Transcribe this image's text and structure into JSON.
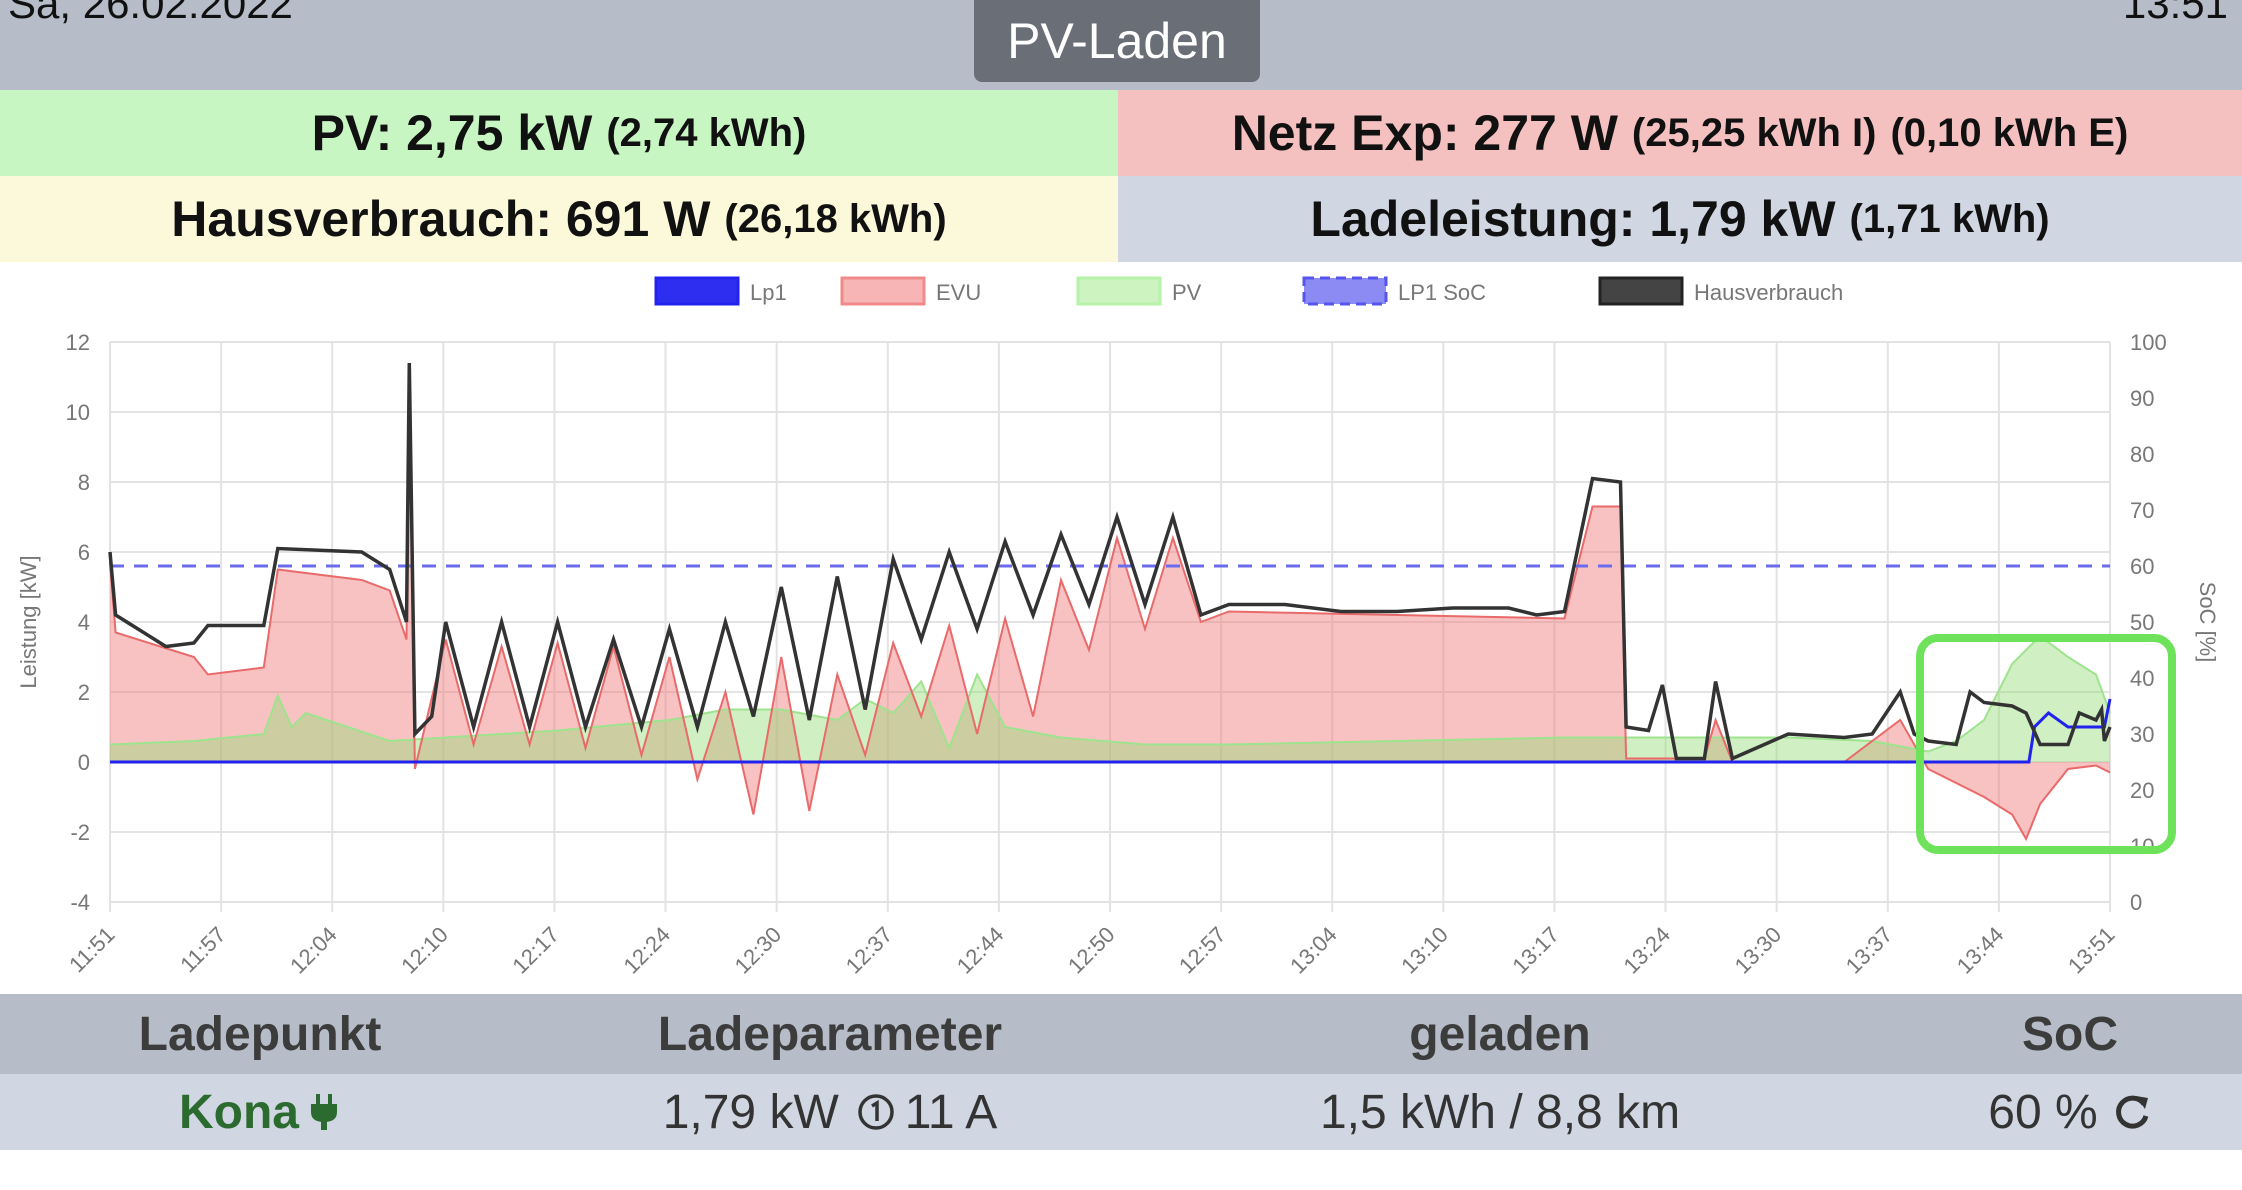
{
  "header": {
    "date": "Sa, 26.02.2022",
    "time": "13:51",
    "mode_button": "PV-Laden"
  },
  "stats": {
    "pv_label": "PV: 2,75 kW",
    "pv_energy": "(2,74 kWh)",
    "netz_label": "Netz Exp: 277 W",
    "netz_import": "(25,25 kWh I)",
    "netz_export": "(0,10 kWh E)",
    "haus_label": "Hausverbrauch: 691 W",
    "haus_energy": "(26,18 kWh)",
    "lade_label": "Ladeleistung: 1,79 kW",
    "lade_energy": "(1,71 kWh)"
  },
  "chart_data": {
    "type": "area",
    "legend": [
      {
        "name": "Lp1",
        "color": "#2222ee",
        "style": "solid"
      },
      {
        "name": "EVU",
        "color": "#f08a8a",
        "style": "solid"
      },
      {
        "name": "PV",
        "color": "#b6f2a8",
        "style": "solid"
      },
      {
        "name": "LP1 SoC",
        "color": "#5555ee",
        "style": "dashed"
      },
      {
        "name": "Hausverbrauch",
        "color": "#333333",
        "style": "solid"
      }
    ],
    "legend_position": "top-center",
    "ylabel_left": "Leistung [kW]",
    "ylabel_right": "SoC [%]",
    "ylim_left": [
      -4,
      12
    ],
    "ylim_right": [
      0,
      100
    ],
    "yticks_left": [
      "12",
      "10",
      "8",
      "6",
      "4",
      "2",
      "0",
      "-2",
      "-4"
    ],
    "yticks_right": [
      "100",
      "90",
      "80",
      "70",
      "60",
      "50",
      "40",
      "30",
      "20",
      "10",
      "0"
    ],
    "xticks": [
      "11:51",
      "11:57",
      "12:04",
      "12:10",
      "12:17",
      "12:24",
      "12:30",
      "12:37",
      "12:44",
      "12:50",
      "12:57",
      "13:04",
      "13:10",
      "13:17",
      "13:24",
      "13:30",
      "13:37",
      "13:44",
      "13:51"
    ],
    "grid": true,
    "lp1_soc_percent": 60,
    "series": [
      {
        "name": "Hausverbrauch",
        "points": [
          [
            0,
            6
          ],
          [
            0.2,
            4.2
          ],
          [
            1,
            3.8
          ],
          [
            2,
            3.3
          ],
          [
            3,
            3.4
          ],
          [
            3.5,
            3.9
          ],
          [
            5.5,
            3.9
          ],
          [
            6,
            6.1
          ],
          [
            9,
            6
          ],
          [
            10,
            5.5
          ],
          [
            10.6,
            4
          ],
          [
            10.7,
            11.4
          ],
          [
            10.9,
            0.8
          ],
          [
            11.5,
            1.3
          ],
          [
            12,
            4
          ],
          [
            13,
            1
          ],
          [
            14,
            4
          ],
          [
            15,
            1
          ],
          [
            16,
            4
          ],
          [
            17,
            1
          ],
          [
            18,
            3.5
          ],
          [
            19,
            1
          ],
          [
            20,
            3.8
          ],
          [
            21,
            1
          ],
          [
            22,
            4
          ],
          [
            23,
            1.3
          ],
          [
            24,
            5
          ],
          [
            25,
            1.2
          ],
          [
            26,
            5.3
          ],
          [
            27,
            1.5
          ],
          [
            28,
            5.8
          ],
          [
            29,
            3.5
          ],
          [
            30,
            6
          ],
          [
            31,
            3.8
          ],
          [
            32,
            6.3
          ],
          [
            33,
            4.2
          ],
          [
            34,
            6.5
          ],
          [
            35,
            4.5
          ],
          [
            36,
            7
          ],
          [
            37,
            4.5
          ],
          [
            38,
            7
          ],
          [
            39,
            4.2
          ],
          [
            40,
            4.5
          ],
          [
            42,
            4.5
          ],
          [
            44,
            4.3
          ],
          [
            46,
            4.3
          ],
          [
            48,
            4.4
          ],
          [
            50,
            4.4
          ],
          [
            51,
            4.2
          ],
          [
            52,
            4.3
          ],
          [
            53,
            8.1
          ],
          [
            54,
            8
          ],
          [
            54.2,
            1
          ],
          [
            55,
            0.9
          ],
          [
            55.5,
            2.2
          ],
          [
            56,
            0.1
          ],
          [
            57,
            0.1
          ],
          [
            57.4,
            2.3
          ],
          [
            58,
            0.1
          ],
          [
            60,
            0.8
          ],
          [
            62,
            0.7
          ],
          [
            63,
            0.8
          ],
          [
            64,
            2
          ],
          [
            64.5,
            0.8
          ],
          [
            65,
            0.6
          ],
          [
            66,
            0.5
          ],
          [
            66.5,
            2
          ],
          [
            67,
            1.7
          ],
          [
            68,
            1.6
          ],
          [
            68.5,
            1.4
          ],
          [
            69,
            0.5
          ],
          [
            70,
            0.5
          ],
          [
            70.4,
            1.4
          ],
          [
            71,
            1.2
          ],
          [
            71.2,
            1.5
          ],
          [
            71.3,
            0.6
          ],
          [
            71.5,
            1
          ]
        ]
      },
      {
        "name": "EVU",
        "points": [
          [
            0,
            5.7
          ],
          [
            0.2,
            3.7
          ],
          [
            3,
            3
          ],
          [
            3.5,
            2.5
          ],
          [
            5.5,
            2.7
          ],
          [
            6,
            5.5
          ],
          [
            9,
            5.2
          ],
          [
            10,
            4.9
          ],
          [
            10.6,
            3.5
          ],
          [
            10.7,
            10.6
          ],
          [
            10.9,
            -0.2
          ],
          [
            12,
            3.5
          ],
          [
            13,
            0.5
          ],
          [
            14,
            3.3
          ],
          [
            15,
            0.5
          ],
          [
            16,
            3.4
          ],
          [
            17,
            0.4
          ],
          [
            18,
            3.3
          ],
          [
            19,
            0.2
          ],
          [
            20,
            3
          ],
          [
            21,
            -0.5
          ],
          [
            22,
            2
          ],
          [
            23,
            -1.5
          ],
          [
            24,
            3
          ],
          [
            25,
            -1.4
          ],
          [
            26,
            2.5
          ],
          [
            27,
            0.2
          ],
          [
            28,
            3.4
          ],
          [
            29,
            1.3
          ],
          [
            30,
            3.9
          ],
          [
            31,
            0.8
          ],
          [
            32,
            4.1
          ],
          [
            33,
            1.3
          ],
          [
            34,
            5.2
          ],
          [
            35,
            3.2
          ],
          [
            36,
            6.4
          ],
          [
            37,
            3.8
          ],
          [
            38,
            6.4
          ],
          [
            39,
            4
          ],
          [
            40,
            4.3
          ],
          [
            46,
            4.2
          ],
          [
            52,
            4.1
          ],
          [
            53,
            7.3
          ],
          [
            54,
            7.3
          ],
          [
            54.2,
            0.1
          ],
          [
            57,
            0.1
          ],
          [
            57.4,
            1.2
          ],
          [
            58,
            0
          ],
          [
            62,
            0
          ],
          [
            64,
            1.2
          ],
          [
            65,
            -0.2
          ],
          [
            66,
            -0.6
          ],
          [
            67,
            -1
          ],
          [
            68,
            -1.5
          ],
          [
            68.5,
            -2.2
          ],
          [
            69,
            -1.2
          ],
          [
            70,
            -0.2
          ],
          [
            71,
            -0.1
          ],
          [
            71.5,
            -0.3
          ]
        ]
      },
      {
        "name": "PV",
        "points": [
          [
            0,
            0.5
          ],
          [
            3,
            0.6
          ],
          [
            5.5,
            0.8
          ],
          [
            6,
            1.9
          ],
          [
            6.5,
            1
          ],
          [
            7,
            1.4
          ],
          [
            10,
            0.6
          ],
          [
            12,
            0.7
          ],
          [
            16,
            0.9
          ],
          [
            20,
            1.2
          ],
          [
            22,
            1.5
          ],
          [
            24,
            1.5
          ],
          [
            26,
            1.2
          ],
          [
            27,
            1.8
          ],
          [
            28,
            1.4
          ],
          [
            29,
            2.3
          ],
          [
            30,
            0.4
          ],
          [
            31,
            2.5
          ],
          [
            32,
            1
          ],
          [
            34,
            0.7
          ],
          [
            37,
            0.5
          ],
          [
            40,
            0.5
          ],
          [
            46,
            0.6
          ],
          [
            52,
            0.7
          ],
          [
            54,
            0.7
          ],
          [
            56,
            0.7
          ],
          [
            60,
            0.7
          ],
          [
            63,
            0.6
          ],
          [
            65,
            0.3
          ],
          [
            66,
            0.6
          ],
          [
            67,
            1.2
          ],
          [
            68,
            2.8
          ],
          [
            69,
            3.6
          ],
          [
            70,
            3
          ],
          [
            71,
            2.5
          ],
          [
            71.5,
            1.4
          ]
        ]
      },
      {
        "name": "Lp1",
        "points": [
          [
            0,
            0
          ],
          [
            68.6,
            0
          ],
          [
            68.8,
            1
          ],
          [
            69.3,
            1.4
          ],
          [
            70,
            1
          ],
          [
            71.3,
            1
          ],
          [
            71.5,
            1.8
          ]
        ]
      }
    ]
  },
  "table": {
    "headers": [
      "Ladepunkt",
      "Ladeparameter",
      "geladen",
      "SoC"
    ],
    "rows": [
      {
        "ladepunkt": "Kona",
        "ladeparameter": "1,79 kW",
        "strom": "11 A",
        "geladen": "1,5 kWh / 8,8 km",
        "soc": "60 %"
      }
    ]
  }
}
